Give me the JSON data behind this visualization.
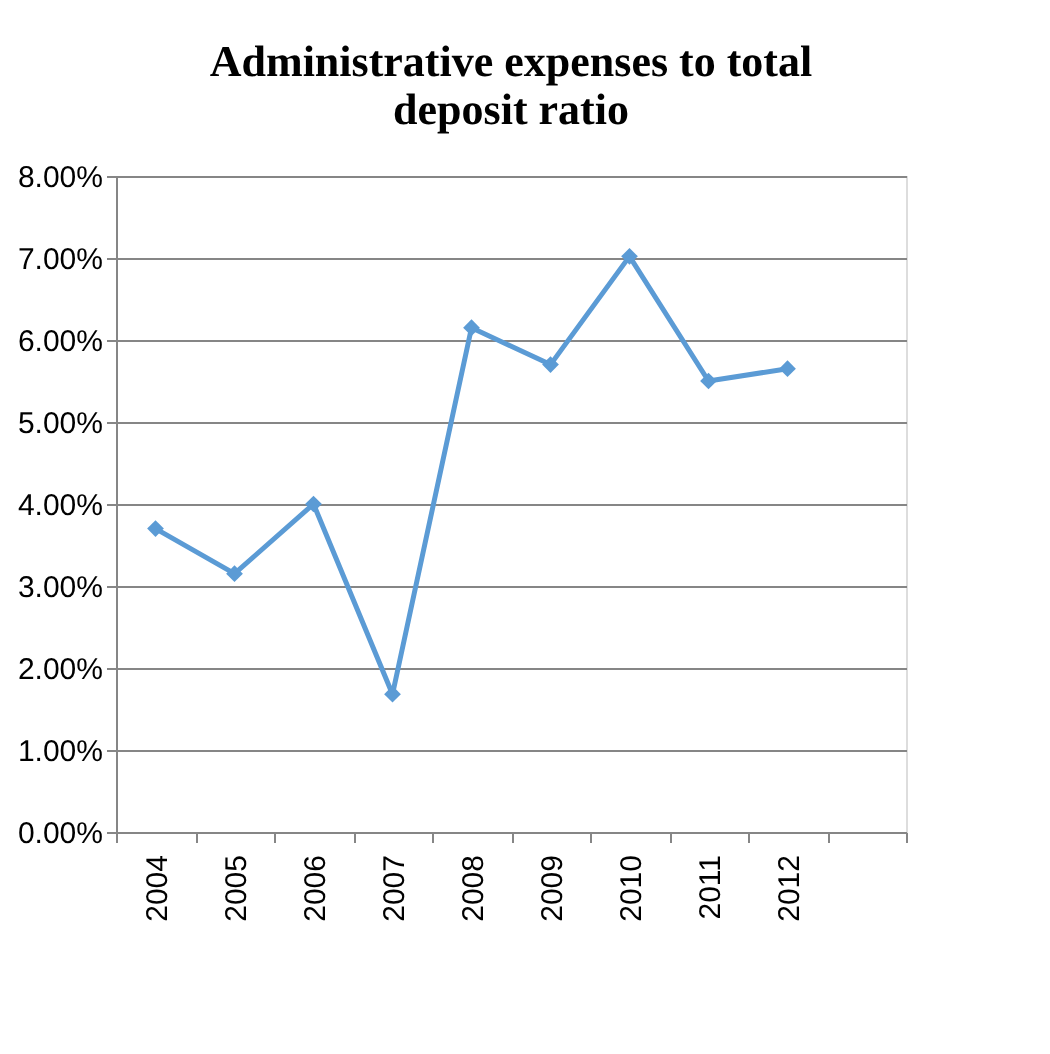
{
  "chart_data": {
    "type": "line",
    "title": "Administrative  expenses to total\ndeposit ratio",
    "categories": [
      "2004",
      "2005",
      "2006",
      "2007",
      "2008",
      "2009",
      "2010",
      "2011",
      "2012",
      null
    ],
    "series": [
      {
        "color": "#5b9bd5",
        "values": [
          3.7,
          3.15,
          4.0,
          1.68,
          6.15,
          5.7,
          7.02,
          5.5,
          5.65,
          null
        ]
      }
    ],
    "ylim": [
      0,
      8
    ],
    "yticks": [
      {
        "value": 0,
        "label": "0.00%"
      },
      {
        "value": 1,
        "label": "1.00%"
      },
      {
        "value": 2,
        "label": "2.00%"
      },
      {
        "value": 3,
        "label": "3.00%"
      },
      {
        "value": 4,
        "label": "4.00%"
      },
      {
        "value": 5,
        "label": "5.00%"
      },
      {
        "value": 6,
        "label": "6.00%"
      },
      {
        "value": 7,
        "label": "7.00%"
      },
      {
        "value": 8,
        "label": "8.00%"
      }
    ],
    "grid": "y",
    "marker": "diamond",
    "line_style": "solid"
  }
}
